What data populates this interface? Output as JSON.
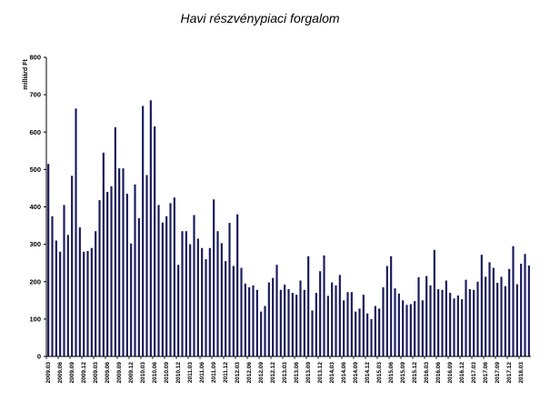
{
  "chart_data": {
    "type": "bar",
    "title": "Havi részvénypiaci forgalom",
    "ylabel": "milliárd Ft",
    "xlabel": "",
    "ylim": [
      0,
      800
    ],
    "yticks": [
      0,
      100,
      200,
      300,
      400,
      500,
      600,
      700,
      800
    ],
    "grid": false,
    "legend": "none",
    "bar_color": "#1a1a5e",
    "start": "2009.03",
    "x_tick_labels": [
      "2009.03",
      "2009.06",
      "2009.09",
      "2009.12",
      "2009.03",
      "2009.06",
      "2009.09",
      "2009.12",
      "2010.03",
      "2010.06",
      "2010.09",
      "2010.12",
      "2011.03",
      "2011.06",
      "2011.09",
      "2011.12",
      "2012.03",
      "2012.06",
      "2012.09",
      "2012.12",
      "2013.03",
      "2013.06",
      "2013.09",
      "2013.12",
      "2014.03",
      "2014.06",
      "2014.09",
      "2014.12",
      "2015.03",
      "2015.06",
      "2015.09",
      "2015.12",
      "2016.03",
      "2016.06",
      "2016.09",
      "2016.12",
      "2017.03",
      "2017.06",
      "2017.09",
      "2017.12",
      "2018.03"
    ],
    "values": [
      515,
      375,
      310,
      280,
      405,
      325,
      483,
      663,
      345,
      280,
      282,
      290,
      335,
      418,
      545,
      440,
      455,
      613,
      503,
      503,
      435,
      302,
      460,
      370,
      670,
      485,
      685,
      615,
      405,
      358,
      375,
      410,
      425,
      245,
      335,
      335,
      300,
      378,
      315,
      290,
      260,
      290,
      420,
      335,
      303,
      255,
      357,
      242,
      380,
      237,
      195,
      185,
      190,
      178,
      120,
      135,
      198,
      210,
      245,
      178,
      192,
      180,
      170,
      165,
      203,
      178,
      268,
      123,
      170,
      228,
      270,
      162,
      198,
      190,
      218,
      150,
      172,
      172,
      120,
      128,
      165,
      115,
      100,
      135,
      128,
      185,
      242,
      268,
      182,
      168,
      150,
      138,
      140,
      148,
      212,
      150,
      215,
      190,
      285,
      180,
      178,
      203,
      170,
      155,
      163,
      153,
      205,
      180,
      178,
      200,
      272,
      213,
      252,
      237,
      197,
      213,
      188,
      234,
      295,
      193,
      248,
      274,
      243
    ]
  }
}
